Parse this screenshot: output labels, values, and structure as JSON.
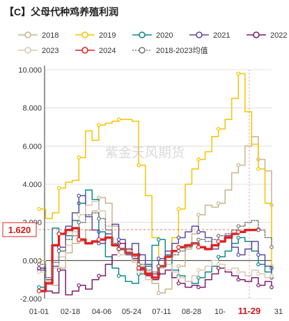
{
  "chart_data": {
    "type": "line",
    "title": "【C】父母代种鸡养殖利润",
    "watermark": "紫金天风期货",
    "xlabel": "",
    "ylabel": "",
    "x_ticks": [
      "01-01",
      "02-18",
      "04-06",
      "05-24",
      "07-11",
      "08-28",
      "10-",
      "11-29",
      "31"
    ],
    "highlight_x_tick": "11-29",
    "y_ticks": [
      "-2.000",
      "0.000",
      "2.000",
      "4.000",
      "6.000",
      "8.000",
      "10.000"
    ],
    "ylim": [
      -2,
      10
    ],
    "grid": true,
    "legend_position": "top",
    "current_label": "1.620",
    "series": [
      {
        "name": "2018",
        "color": "#c8b48c",
        "style": "solid",
        "values": [
          0.0,
          -0.9,
          -1.3,
          -0.4,
          0.4,
          0.9,
          1.0,
          1.6,
          2.6,
          3.3,
          3.0,
          1.8,
          0.9,
          0.5,
          0.3,
          -0.3,
          -0.6,
          -1.2,
          -1.7,
          -1.5,
          -0.9,
          -0.3,
          0.6,
          1.4,
          2.4,
          2.9,
          2.8,
          3.0,
          3.7,
          4.6,
          5.0,
          6.0,
          6.5,
          5.3,
          4.7,
          2.9
        ]
      },
      {
        "name": "2019",
        "color": "#f5c400",
        "style": "solid",
        "values": [
          2.7,
          2.2,
          2.5,
          3.8,
          4.1,
          4.2,
          5.4,
          6.8,
          6.3,
          7.1,
          7.2,
          7.3,
          7.4,
          7.4,
          7.3,
          5.0,
          3.4,
          1.2,
          -0.3,
          -0.2,
          1.2,
          2.7,
          4.0,
          4.8,
          5.3,
          5.7,
          6.5,
          6.9,
          7.4,
          8.5,
          9.8,
          7.8,
          6.1,
          4.8,
          3.0,
          -0.3
        ]
      },
      {
        "name": "2020",
        "color": "#0e8a8a",
        "style": "solid",
        "values": [
          -1.4,
          -1.0,
          1.7,
          0.5,
          1.3,
          2.1,
          3.0,
          3.7,
          3.2,
          1.5,
          0.2,
          -0.4,
          -0.8,
          -1.1,
          -1.2,
          -0.7,
          -0.3,
          0.8,
          1.1,
          0.3,
          -0.5,
          -0.8,
          -1.1,
          -1.2,
          -0.9,
          -0.6,
          -0.3,
          0.2,
          0.5,
          0.9,
          1.2,
          1.0,
          0.5,
          -0.2,
          -0.6,
          -0.4
        ]
      },
      {
        "name": "2021",
        "color": "#5b4aa4",
        "style": "solid",
        "values": [
          -0.5,
          -1.0,
          -0.3,
          0.7,
          1.8,
          2.5,
          3.4,
          2.3,
          1.6,
          0.9,
          1.4,
          1.9,
          1.1,
          0.3,
          0.9,
          0.3,
          -0.2,
          -0.7,
          0.1,
          0.5,
          0.9,
          1.2,
          1.5,
          1.8,
          1.5,
          1.2,
          0.6,
          1.0,
          1.3,
          0.7,
          0.3,
          0.6,
          1.0,
          0.3,
          -0.3,
          -0.9
        ]
      },
      {
        "name": "2022",
        "color": "#7a1e6e",
        "style": "solid",
        "values": [
          -0.4,
          -1.6,
          -1.7,
          -0.5,
          -1.8,
          -1.6,
          -1.3,
          -1.5,
          -1.0,
          -0.8,
          -0.2,
          0.3,
          0.9,
          0.6,
          0.1,
          -0.5,
          -0.8,
          -1.0,
          -0.7,
          -0.5,
          -0.9,
          -1.2,
          -1.4,
          -1.3,
          -1.4,
          -1.0,
          -0.7,
          -0.4,
          -0.6,
          -0.8,
          -1.0,
          -1.1,
          -0.9,
          -1.3,
          -1.1,
          -1.4
        ]
      },
      {
        "name": "2023",
        "color": "#d8c8b2",
        "style": "solid",
        "values": [
          -0.6,
          -1.1,
          -0.4,
          0.2,
          0.8,
          1.5,
          2.4,
          2.9,
          3.1,
          2.6,
          1.8,
          0.9,
          0.3,
          0.5,
          -0.1,
          -0.6,
          -1.0,
          -0.8,
          -0.4,
          -0.2,
          -0.6,
          -0.9,
          -1.1,
          -0.8,
          -0.5,
          -0.3,
          0.0,
          -0.2,
          -0.5,
          -0.4,
          -0.6,
          -0.8,
          -0.5,
          -0.7,
          -0.9,
          -0.8
        ]
      },
      {
        "name": "2024",
        "color": "#e02020",
        "style": "solid",
        "width": 3.4,
        "values": [
          -1.6,
          -1.2,
          0.8,
          1.4,
          1.6,
          1.7,
          1.1,
          0.9,
          1.0,
          1.1,
          1.2,
          0.8,
          0.6,
          0.4,
          0.3,
          -0.4,
          -0.7,
          -0.9,
          -0.3,
          0.2,
          0.5,
          0.7,
          0.8,
          0.9,
          0.7,
          0.6,
          0.8,
          1.0,
          1.2,
          1.4,
          1.5,
          1.6,
          1.6,
          1.62
        ]
      },
      {
        "name": "2018-2023均值",
        "color": "#777777",
        "style": "dotted",
        "values": [
          -0.2,
          -0.9,
          -0.1,
          0.5,
          1.1,
          1.3,
          2.0,
          2.4,
          2.5,
          2.2,
          1.6,
          0.9,
          0.6,
          0.4,
          0.2,
          -0.2,
          -0.5,
          -0.6,
          -0.3,
          0.0,
          0.3,
          0.5,
          0.7,
          0.9,
          1.1,
          1.0,
          1.1,
          1.3,
          1.4,
          1.6,
          1.8,
          2.0,
          2.1,
          1.6,
          1.2,
          0.7
        ]
      }
    ]
  }
}
